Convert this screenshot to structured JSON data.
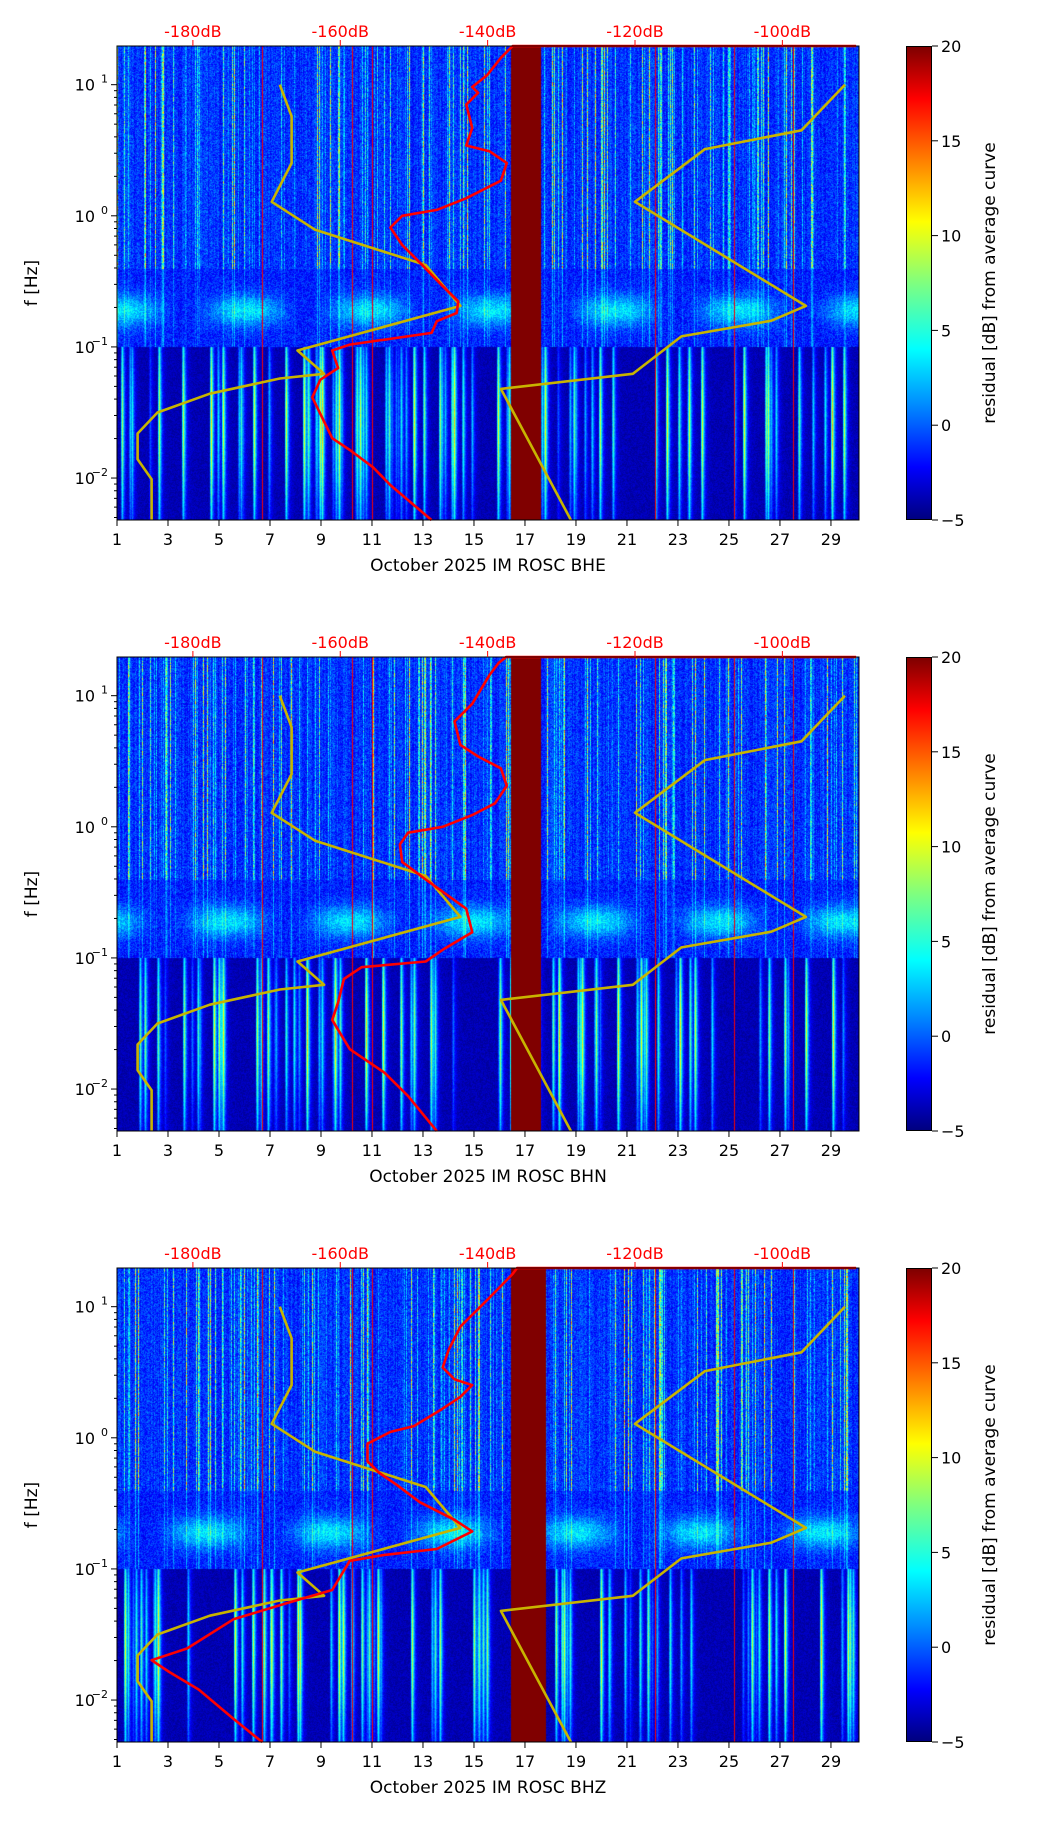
{
  "chart_data": [
    {
      "type": "heatmap",
      "xlabel": "October 2025 IM ROSC  BHE",
      "channel": "BHE",
      "red_curve_db_log10f": [
        [
          -90,
          1.295
        ],
        [
          -136.6,
          1.295
        ],
        [
          -138.2,
          1.205
        ],
        [
          -140.1,
          1.071
        ],
        [
          -142.1,
          0.982
        ],
        [
          -141.3,
          0.938
        ],
        [
          -142.9,
          0.848
        ],
        [
          -142.1,
          0.67
        ],
        [
          -142.9,
          0.536
        ],
        [
          -139.7,
          0.491
        ],
        [
          -137.4,
          0.402
        ],
        [
          -138.2,
          0.268
        ],
        [
          -142.9,
          0.134
        ],
        [
          -146.9,
          0.045
        ],
        [
          -151.6,
          0.0
        ],
        [
          -153.2,
          -0.089
        ],
        [
          -151.6,
          -0.223
        ],
        [
          -149.2,
          -0.357
        ],
        [
          -146.1,
          -0.536
        ],
        [
          -144.0,
          -0.652
        ],
        [
          -144.2,
          -0.741
        ],
        [
          -146.9,
          -0.804
        ],
        [
          -147.6,
          -0.893
        ],
        [
          -158.7,
          -0.982
        ],
        [
          -161.1,
          -1.027
        ],
        [
          -160.3,
          -1.161
        ],
        [
          -162.7,
          -1.25
        ],
        [
          -163.8,
          -1.384
        ],
        [
          -161.1,
          -1.696
        ],
        [
          -158.7,
          -1.786
        ],
        [
          -155.5,
          -1.92
        ],
        [
          -153.2,
          -2.054
        ],
        [
          -147.6,
          -2.321
        ]
      ],
      "gap_days": [
        16.45,
        17.6
      ]
    },
    {
      "type": "heatmap",
      "xlabel": "October 2025 IM ROSC  BHN",
      "channel": "BHN",
      "red_curve_db_log10f": [
        [
          -90,
          1.295
        ],
        [
          -137.5,
          1.295
        ],
        [
          -138.5,
          1.25
        ],
        [
          -139.7,
          1.161
        ],
        [
          -142.1,
          0.938
        ],
        [
          -144.5,
          0.804
        ],
        [
          -143.7,
          0.625
        ],
        [
          -141.3,
          0.536
        ],
        [
          -138.2,
          0.446
        ],
        [
          -137.4,
          0.313
        ],
        [
          -139.0,
          0.179
        ],
        [
          -142.1,
          0.089
        ],
        [
          -146.1,
          0.0
        ],
        [
          -150.8,
          -0.045
        ],
        [
          -151.9,
          -0.134
        ],
        [
          -151.6,
          -0.268
        ],
        [
          -148.4,
          -0.402
        ],
        [
          -142.9,
          -0.625
        ],
        [
          -142.1,
          -0.804
        ],
        [
          -146.1,
          -0.938
        ],
        [
          -148.4,
          -1.027
        ],
        [
          -157.1,
          -1.071
        ],
        [
          -159.5,
          -1.161
        ],
        [
          -160.3,
          -1.339
        ],
        [
          -161.1,
          -1.473
        ],
        [
          -158.7,
          -1.696
        ],
        [
          -154.0,
          -1.875
        ],
        [
          -150.8,
          -2.054
        ],
        [
          -146.9,
          -2.321
        ]
      ],
      "gap_days": [
        16.45,
        17.6
      ]
    },
    {
      "type": "heatmap",
      "xlabel": "October 2025 IM ROSC  BHZ",
      "channel": "BHZ",
      "red_curve_db_log10f": [
        [
          -90,
          1.295
        ],
        [
          -136.0,
          1.295
        ],
        [
          -136.6,
          1.25
        ],
        [
          -139.7,
          1.071
        ],
        [
          -143.7,
          0.848
        ],
        [
          -145.3,
          0.67
        ],
        [
          -146.1,
          0.536
        ],
        [
          -144.5,
          0.446
        ],
        [
          -142.1,
          0.402
        ],
        [
          -143.7,
          0.313
        ],
        [
          -146.1,
          0.223
        ],
        [
          -150.0,
          0.089
        ],
        [
          -153.2,
          0.045
        ],
        [
          -156.3,
          -0.045
        ],
        [
          -156.3,
          -0.179
        ],
        [
          -154.7,
          -0.268
        ],
        [
          -152.4,
          -0.357
        ],
        [
          -149.2,
          -0.491
        ],
        [
          -144.5,
          -0.625
        ],
        [
          -142.1,
          -0.714
        ],
        [
          -146.9,
          -0.848
        ],
        [
          -154.0,
          -0.893
        ],
        [
          -158.7,
          -0.938
        ],
        [
          -161.1,
          -1.161
        ],
        [
          -166.6,
          -1.25
        ],
        [
          -174.5,
          -1.384
        ],
        [
          -180.8,
          -1.607
        ],
        [
          -185.6,
          -1.696
        ],
        [
          -183.2,
          -1.786
        ],
        [
          -179.2,
          -1.92
        ],
        [
          -174.5,
          -2.143
        ],
        [
          -170.6,
          -2.321
        ]
      ],
      "gap_days": [
        16.45,
        17.8
      ]
    }
  ],
  "shared": {
    "ylabel": "f [Hz]",
    "colorbar_label": "residual [dB] from average curve",
    "colorbar_range": [
      -5,
      20
    ],
    "colorbar_ticks": [
      "20",
      "15",
      "10",
      "5",
      "0",
      "−5"
    ],
    "colorbar_tick_values": [
      20,
      15,
      10,
      5,
      0,
      -5
    ],
    "x_range_days": [
      1,
      30.1
    ],
    "x_ticks": [
      "1",
      "3",
      "5",
      "7",
      "9",
      "11",
      "13",
      "15",
      "17",
      "19",
      "21",
      "23",
      "25",
      "27",
      "29"
    ],
    "y_range_log10_hz": [
      -2.32,
      1.295
    ],
    "y_ticks": [
      {
        "base": "10",
        "exp": "1",
        "value": 1
      },
      {
        "base": "10",
        "exp": "0",
        "value": 0
      },
      {
        "base": "10",
        "exp": "−1",
        "value": -1
      },
      {
        "base": "10",
        "exp": "−2",
        "value": -2
      }
    ],
    "top_axis_range_db": [
      -190.3,
      -89.6
    ],
    "top_ticks": [
      {
        "label": "-180dB",
        "value": -180
      },
      {
        "label": "-160dB",
        "value": -160
      },
      {
        "label": "-140dB",
        "value": -140
      },
      {
        "label": "-120dB",
        "value": -120
      },
      {
        "label": "-100dB",
        "value": -100
      }
    ],
    "nlnm_db_log10f": [
      [
        -168.2,
        1.0
      ],
      [
        -166.6,
        0.759
      ],
      [
        -166.6,
        0.402
      ],
      [
        -169.3,
        0.107
      ],
      [
        -163.4,
        -0.107
      ],
      [
        -148.4,
        -0.375
      ],
      [
        -143.7,
        -0.6875
      ],
      [
        -165.8,
        -1.027
      ],
      [
        -162.2,
        -1.205
      ],
      [
        -168.2,
        -1.241
      ],
      [
        -177.7,
        -1.357
      ],
      [
        -184.8,
        -1.5
      ],
      [
        -187.5,
        -1.66
      ],
      [
        -187.5,
        -1.857
      ],
      [
        -185.6,
        -2.009
      ],
      [
        -185.6,
        -2.32
      ]
    ],
    "nhnm_db_log10f": [
      [
        -91.5,
        1.0
      ],
      [
        -97.4,
        0.652
      ],
      [
        -110.5,
        0.509
      ],
      [
        -120.0,
        0.107
      ],
      [
        -96.8,
        -0.6875
      ],
      [
        -101.5,
        -0.8
      ],
      [
        -113.7,
        -0.92
      ],
      [
        -120.3,
        -1.205
      ],
      [
        -138.2,
        -1.32
      ],
      [
        -128.7,
        -2.32
      ]
    ],
    "colors": {
      "reference": "#c8b400",
      "median": "#ff0000",
      "top_axis": "#ff0000"
    }
  }
}
